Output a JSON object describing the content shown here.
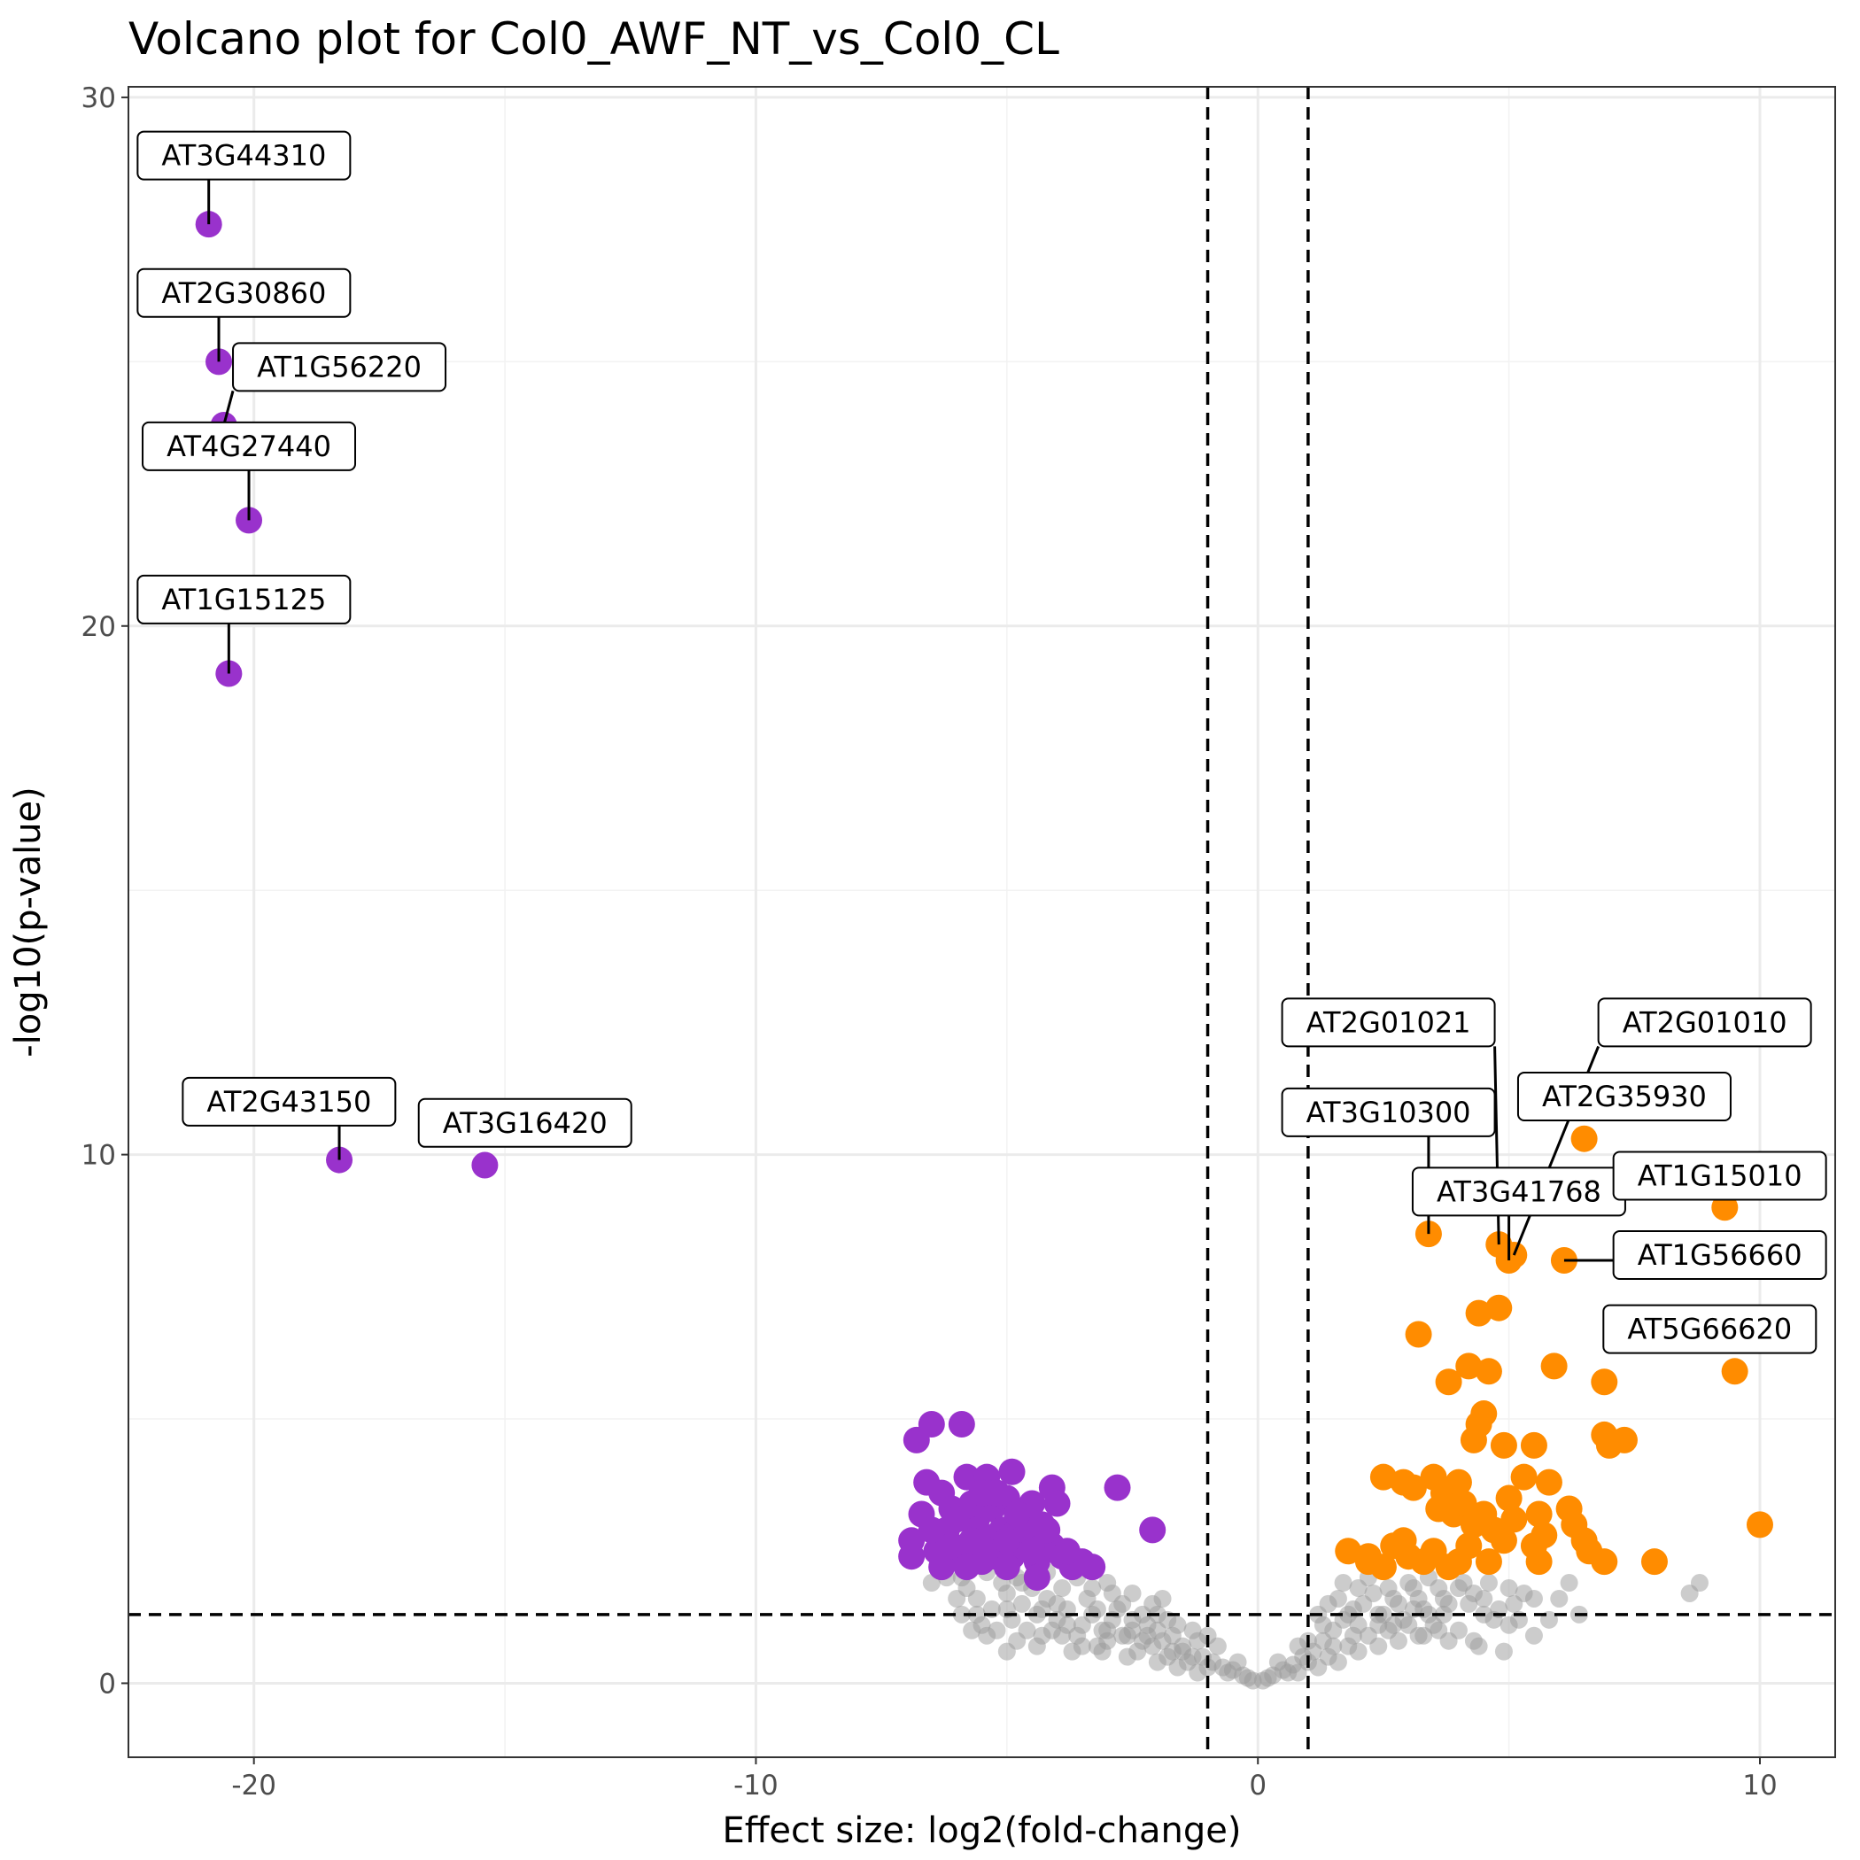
{
  "colors": {
    "down": "#9932CC",
    "up": "#FF8C00",
    "not_significant": "#999999",
    "grid_major": "#EBEBEB",
    "grid_minor": "#F2F2F2",
    "panel_border": "#333333",
    "threshold_line": "#000000"
  },
  "chart_data": {
    "type": "scatter",
    "title": "Volcano plot for Col0_AWF_NT_vs_Col0_CL",
    "xlabel": "Effect size: log2(fold-change)",
    "ylabel": "-log10(p-value)",
    "xlim": [
      -22.5,
      11.5
    ],
    "ylim": [
      -1.4,
      30.2
    ],
    "x_ticks": [
      -20,
      -10,
      0,
      10
    ],
    "x_tick_labels": [
      "-20",
      "-10",
      "0",
      "10"
    ],
    "y_ticks": [
      0,
      10,
      20,
      30
    ],
    "y_tick_labels": [
      "0",
      "10",
      "20",
      "30"
    ],
    "grid": true,
    "legend": "none",
    "thresholds": {
      "log2fc": [
        -1,
        1
      ],
      "neg_log10_p": 1.3
    },
    "labeled_points": [
      {
        "gene": "AT3G44310",
        "x": -20.9,
        "y": 27.6,
        "group": "down",
        "label_at": [
          -20.2,
          28.9
        ]
      },
      {
        "gene": "AT2G30860",
        "x": -20.7,
        "y": 25.0,
        "group": "down",
        "label_at": [
          -20.2,
          26.3
        ]
      },
      {
        "gene": "AT1G56220",
        "x": -20.6,
        "y": 23.8,
        "group": "down",
        "label_at": [
          -18.3,
          24.9
        ]
      },
      {
        "gene": "AT4G27440",
        "x": -20.1,
        "y": 22.0,
        "group": "down",
        "label_at": [
          -20.1,
          23.4
        ]
      },
      {
        "gene": "AT1G15125",
        "x": -20.5,
        "y": 19.1,
        "group": "down",
        "label_at": [
          -20.2,
          20.5
        ]
      },
      {
        "gene": "AT2G43150",
        "x": -18.3,
        "y": 9.9,
        "group": "down",
        "label_at": [
          -19.3,
          11.0
        ]
      },
      {
        "gene": "AT3G16420",
        "x": -15.4,
        "y": 9.8,
        "group": "down",
        "label_at": [
          -14.6,
          10.6
        ]
      },
      {
        "gene": "AT2G01021",
        "x": 4.8,
        "y": 8.3,
        "group": "up",
        "label_at": [
          2.6,
          12.5
        ]
      },
      {
        "gene": "AT2G01010",
        "x": 5.1,
        "y": 8.1,
        "group": "up",
        "label_at": [
          8.9,
          12.5
        ]
      },
      {
        "gene": "AT3G10300",
        "x": 3.4,
        "y": 8.5,
        "group": "up",
        "label_at": [
          2.6,
          10.8
        ]
      },
      {
        "gene": "AT2G35930",
        "x": 6.5,
        "y": 10.3,
        "group": "up",
        "label_at": [
          7.3,
          11.1
        ]
      },
      {
        "gene": "AT3G41768",
        "x": 5.0,
        "y": 8.0,
        "group": "up",
        "label_at": [
          5.2,
          9.3
        ]
      },
      {
        "gene": "AT1G15010",
        "x": 9.3,
        "y": 9.0,
        "group": "up",
        "label_at": [
          9.2,
          9.6
        ]
      },
      {
        "gene": "AT1G56660",
        "x": 6.1,
        "y": 8.0,
        "group": "up",
        "label_at": [
          9.2,
          8.1
        ]
      },
      {
        "gene": "AT5G66620",
        "x": 9.5,
        "y": 5.9,
        "group": "up",
        "label_at": [
          9.0,
          6.7
        ]
      }
    ],
    "down_points": [
      [
        -6.5,
        4.9
      ],
      [
        -6.8,
        4.6
      ],
      [
        -5.9,
        4.9
      ],
      [
        -6.6,
        3.8
      ],
      [
        -6.3,
        3.6
      ],
      [
        -5.8,
        3.9
      ],
      [
        -5.4,
        3.9
      ],
      [
        -4.9,
        4.0
      ],
      [
        -4.1,
        3.7
      ],
      [
        -4.0,
        3.4
      ],
      [
        -2.8,
        3.7
      ],
      [
        -2.1,
        2.9
      ],
      [
        -6.9,
        2.7
      ],
      [
        -6.9,
        2.4
      ],
      [
        -6.7,
        3.2
      ],
      [
        -6.4,
        2.5
      ],
      [
        -6.1,
        3.3
      ],
      [
        -5.8,
        2.6
      ],
      [
        -5.6,
        3.1
      ],
      [
        -5.5,
        2.3
      ],
      [
        -5.3,
        3.3
      ],
      [
        -5.2,
        2.8
      ],
      [
        -5.0,
        3.5
      ],
      [
        -4.9,
        2.4
      ],
      [
        -4.7,
        3.2
      ],
      [
        -4.6,
        2.7
      ],
      [
        -4.4,
        2.3
      ],
      [
        -4.3,
        3.0
      ],
      [
        -4.1,
        2.6
      ],
      [
        -3.9,
        2.4
      ],
      [
        -3.7,
        2.2
      ],
      [
        -3.5,
        2.3
      ],
      [
        -3.3,
        2.2
      ],
      [
        -6.2,
        2.9
      ],
      [
        -5.9,
        2.4
      ],
      [
        -5.7,
        3.4
      ],
      [
        -5.4,
        2.6
      ],
      [
        -5.1,
        2.9
      ],
      [
        -4.8,
        2.9
      ],
      [
        -4.5,
        2.5
      ],
      [
        -6.0,
        3.1
      ],
      [
        -5.6,
        2.9
      ],
      [
        -5.3,
        2.4
      ],
      [
        -5.0,
        2.7
      ],
      [
        -4.6,
        3.0
      ],
      [
        -4.2,
        2.9
      ],
      [
        -3.8,
        2.5
      ],
      [
        -6.5,
        2.9
      ],
      [
        -5.5,
        3.6
      ],
      [
        -4.5,
        3.4
      ],
      [
        -6.3,
        2.2
      ],
      [
        -5.8,
        2.2
      ],
      [
        -5.0,
        2.2
      ],
      [
        -4.4,
        2.0
      ],
      [
        -5.2,
        3.6
      ],
      [
        -4.8,
        3.2
      ],
      [
        -5.7,
        2.7
      ],
      [
        -6.1,
        2.6
      ]
    ],
    "up_points": [
      [
        1.8,
        2.5
      ],
      [
        2.2,
        2.3
      ],
      [
        2.5,
        2.2
      ],
      [
        2.7,
        2.6
      ],
      [
        3.0,
        2.4
      ],
      [
        3.3,
        2.3
      ],
      [
        3.5,
        2.5
      ],
      [
        3.8,
        2.2
      ],
      [
        4.0,
        2.3
      ],
      [
        4.6,
        2.3
      ],
      [
        2.5,
        3.9
      ],
      [
        2.9,
        3.8
      ],
      [
        3.1,
        3.7
      ],
      [
        3.5,
        3.9
      ],
      [
        3.7,
        3.6
      ],
      [
        3.9,
        3.2
      ],
      [
        4.1,
        3.4
      ],
      [
        4.3,
        3.0
      ],
      [
        4.5,
        3.2
      ],
      [
        4.7,
        2.9
      ],
      [
        4.9,
        2.7
      ],
      [
        5.1,
        3.1
      ],
      [
        5.3,
        3.9
      ],
      [
        5.6,
        3.2
      ],
      [
        5.7,
        2.8
      ],
      [
        5.8,
        3.8
      ],
      [
        6.2,
        3.3
      ],
      [
        6.3,
        3.0
      ],
      [
        6.5,
        2.7
      ],
      [
        6.6,
        2.5
      ],
      [
        6.9,
        2.3
      ],
      [
        7.9,
        2.3
      ],
      [
        5.6,
        2.3
      ],
      [
        5.5,
        2.6
      ],
      [
        4.3,
        4.6
      ],
      [
        4.4,
        4.9
      ],
      [
        4.5,
        5.1
      ],
      [
        4.9,
        4.5
      ],
      [
        5.5,
        4.5
      ],
      [
        3.2,
        6.6
      ],
      [
        3.8,
        5.7
      ],
      [
        4.2,
        6.0
      ],
      [
        4.6,
        5.9
      ],
      [
        4.4,
        7.0
      ],
      [
        4.8,
        7.1
      ],
      [
        5.9,
        6.0
      ],
      [
        6.9,
        5.7
      ],
      [
        6.9,
        4.7
      ],
      [
        7.0,
        4.5
      ],
      [
        7.3,
        4.6
      ],
      [
        10.0,
        3.0
      ],
      [
        4.0,
        3.8
      ],
      [
        3.6,
        3.3
      ],
      [
        4.2,
        2.6
      ],
      [
        5.0,
        3.5
      ],
      [
        2.9,
        2.7
      ],
      [
        2.2,
        2.4
      ]
    ],
    "ns_points": [
      [
        -5.6,
        1.6
      ],
      [
        -5.3,
        1.4
      ],
      [
        -5.0,
        1.7
      ],
      [
        -4.7,
        1.5
      ],
      [
        -4.4,
        1.3
      ],
      [
        -4.2,
        1.6
      ],
      [
        -4.0,
        1.2
      ],
      [
        -3.8,
        1.4
      ],
      [
        -3.5,
        1.1
      ],
      [
        -3.3,
        1.3
      ],
      [
        -3.1,
        1.0
      ],
      [
        -2.9,
        1.2
      ],
      [
        -2.7,
        0.9
      ],
      [
        -2.5,
        1.0
      ],
      [
        -2.3,
        0.8
      ],
      [
        -2.1,
        0.7
      ],
      [
        -1.9,
        0.8
      ],
      [
        -1.7,
        0.6
      ],
      [
        -1.5,
        0.7
      ],
      [
        -1.3,
        0.5
      ],
      [
        -1.1,
        0.5
      ],
      [
        -0.9,
        0.4
      ],
      [
        -0.7,
        0.3
      ],
      [
        -0.5,
        0.25
      ],
      [
        -0.3,
        0.15
      ],
      [
        -0.1,
        0.05
      ],
      [
        0.1,
        0.05
      ],
      [
        0.3,
        0.15
      ],
      [
        0.5,
        0.25
      ],
      [
        0.7,
        0.35
      ],
      [
        0.9,
        0.5
      ],
      [
        1.1,
        0.6
      ],
      [
        1.3,
        0.8
      ],
      [
        1.5,
        1.0
      ],
      [
        1.7,
        1.2
      ],
      [
        1.9,
        1.4
      ],
      [
        2.1,
        1.5
      ],
      [
        2.3,
        1.7
      ],
      [
        2.5,
        1.3
      ],
      [
        2.7,
        1.6
      ],
      [
        2.9,
        1.2
      ],
      [
        3.1,
        1.8
      ],
      [
        3.3,
        1.4
      ],
      [
        3.5,
        1.1
      ],
      [
        3.7,
        1.6
      ],
      [
        4.0,
        1.8
      ],
      [
        4.3,
        1.7
      ],
      [
        4.6,
        1.9
      ],
      [
        4.8,
        1.4
      ],
      [
        5.0,
        1.8
      ],
      [
        5.2,
        1.2
      ],
      [
        5.5,
        1.6
      ],
      [
        6.0,
        1.6
      ],
      [
        6.2,
        1.9
      ],
      [
        8.6,
        1.7
      ],
      [
        8.8,
        1.9
      ],
      [
        -4.8,
        0.8
      ],
      [
        -4.3,
        0.9
      ],
      [
        -3.7,
        0.6
      ],
      [
        -3.2,
        0.7
      ],
      [
        -2.6,
        0.5
      ],
      [
        -2.0,
        0.4
      ],
      [
        -1.6,
        0.3
      ],
      [
        -1.2,
        0.2
      ],
      [
        0.8,
        0.2
      ],
      [
        1.2,
        0.3
      ],
      [
        1.6,
        0.4
      ],
      [
        2.0,
        0.6
      ],
      [
        2.4,
        0.7
      ],
      [
        2.8,
        0.8
      ],
      [
        3.2,
        0.9
      ],
      [
        3.6,
        1.0
      ],
      [
        4.4,
        0.7
      ],
      [
        5.0,
        1.1
      ],
      [
        -5.8,
        1.8
      ],
      [
        -5.5,
        1.1
      ],
      [
        -5.2,
        1.0
      ],
      [
        -4.9,
        1.2
      ],
      [
        -4.6,
        1.0
      ],
      [
        -4.1,
        1.0
      ],
      [
        -3.6,
        0.9
      ],
      [
        -3.0,
        0.8
      ],
      [
        -2.4,
        0.6
      ],
      [
        -1.8,
        0.5
      ],
      [
        -1.4,
        0.4
      ],
      [
        -1.0,
        0.3
      ],
      [
        -0.6,
        0.2
      ],
      [
        -0.2,
        0.1
      ],
      [
        0.2,
        0.1
      ],
      [
        0.6,
        0.2
      ],
      [
        1.0,
        0.4
      ],
      [
        1.4,
        0.5
      ],
      [
        1.8,
        0.7
      ],
      [
        2.2,
        0.9
      ],
      [
        2.6,
        1.0
      ],
      [
        3.0,
        1.1
      ],
      [
        3.4,
        1.3
      ],
      [
        3.8,
        1.5
      ],
      [
        4.2,
        1.5
      ],
      [
        -6.2,
        2.0
      ],
      [
        -5.9,
        2.0
      ],
      [
        -5.6,
        1.3
      ],
      [
        -5.1,
        1.9
      ],
      [
        -4.5,
        1.8
      ],
      [
        -3.9,
        1.8
      ],
      [
        -3.4,
        1.6
      ],
      [
        -2.8,
        1.4
      ],
      [
        -2.2,
        1.1
      ],
      [
        -6.0,
        1.6
      ],
      [
        -5.7,
        1.0
      ],
      [
        -5.4,
        0.9
      ],
      [
        -5.0,
        1.4
      ],
      [
        -4.7,
        1.9
      ],
      [
        -4.3,
        1.4
      ],
      [
        -3.9,
        0.9
      ],
      [
        -3.5,
        0.7
      ],
      [
        -3.0,
        1.0
      ],
      [
        -2.5,
        1.2
      ],
      [
        -2.0,
        1.0
      ],
      [
        -1.5,
        0.6
      ],
      [
        1.5,
        0.7
      ],
      [
        2.0,
        1.1
      ],
      [
        2.4,
        1.3
      ],
      [
        2.8,
        1.5
      ],
      [
        3.2,
        1.6
      ],
      [
        3.6,
        1.8
      ],
      [
        4.1,
        1.9
      ],
      [
        4.5,
        1.6
      ],
      [
        5.1,
        1.5
      ],
      [
        6.4,
        1.3
      ],
      [
        5.3,
        1.7
      ],
      [
        2.6,
        1.8
      ],
      [
        3.0,
        1.9
      ],
      [
        1.7,
        1.9
      ],
      [
        -5.4,
        2.1
      ],
      [
        -4.8,
        2.0
      ],
      [
        -4.2,
        2.1
      ],
      [
        -3.6,
        2.0
      ],
      [
        -3.0,
        1.9
      ],
      [
        -2.5,
        1.7
      ],
      [
        -2.1,
        1.5
      ],
      [
        -1.8,
        1.2
      ],
      [
        -1.3,
        1.0
      ],
      [
        -0.8,
        0.7
      ],
      [
        0.8,
        0.7
      ],
      [
        1.3,
        1.1
      ],
      [
        1.8,
        1.3
      ],
      [
        4.5,
        1.3
      ],
      [
        5.5,
        0.9
      ],
      [
        -6.5,
        1.9
      ],
      [
        -3.3,
        1.8
      ],
      [
        -2.7,
        1.5
      ],
      [
        -1.6,
        1.1
      ],
      [
        1.2,
        1.3
      ],
      [
        1.6,
        1.6
      ],
      [
        2.2,
        2.0
      ],
      [
        3.4,
        2.0
      ],
      [
        4.0,
        1.0
      ],
      [
        4.9,
        0.6
      ],
      [
        -4.0,
        1.5
      ],
      [
        -2.0,
        1.3
      ],
      [
        -1.0,
        0.9
      ],
      [
        -0.4,
        0.4
      ],
      [
        0.4,
        0.4
      ],
      [
        1.0,
        0.8
      ],
      [
        2.0,
        1.8
      ],
      [
        2.4,
        1.1
      ],
      [
        3.8,
        0.8
      ],
      [
        5.8,
        1.2
      ],
      [
        -5.0,
        0.6
      ],
      [
        -4.4,
        0.7
      ],
      [
        -3.8,
        1.1
      ],
      [
        -3.2,
        1.4
      ],
      [
        -2.6,
        0.9
      ],
      [
        -2.2,
        0.9
      ],
      [
        -1.2,
        0.8
      ],
      [
        1.9,
        0.9
      ],
      [
        3.3,
        0.9
      ],
      [
        4.3,
        0.8
      ],
      [
        -5.9,
        1.3
      ],
      [
        -3.1,
        0.6
      ],
      [
        -2.3,
        1.3
      ],
      [
        -1.7,
        0.9
      ],
      [
        2.7,
        1.1
      ],
      [
        3.1,
        1.4
      ],
      [
        3.7,
        1.3
      ],
      [
        4.7,
        1.2
      ],
      [
        -2.9,
        1.7
      ],
      [
        -1.9,
        1.6
      ],
      [
        1.4,
        1.5
      ]
    ]
  }
}
